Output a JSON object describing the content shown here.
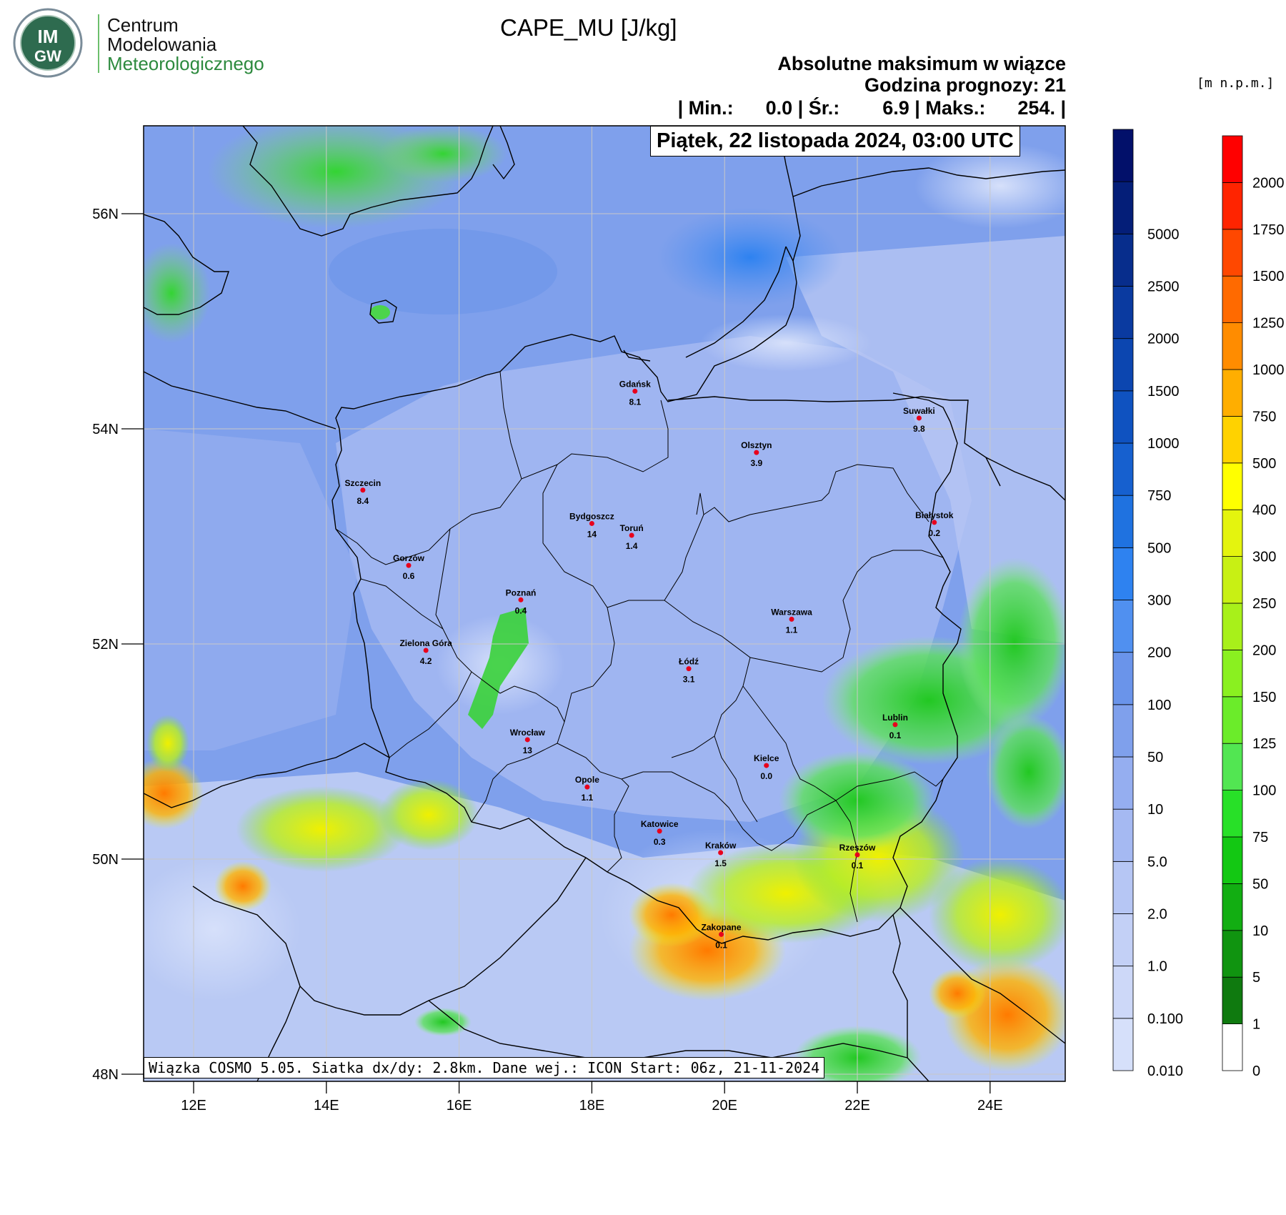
{
  "logo": {
    "badge_line1": "IM",
    "badge_line2": "GW",
    "org_line1": "Centrum",
    "org_line2": "Modelowania",
    "org_line3": "Meteorologicznego",
    "accent_dark": "#004a7c",
    "accent_green": "#4caf50"
  },
  "header": {
    "title": "CAPE_MU [J/kg]",
    "subtitle1": "Absolutne maksimum w wiązce",
    "subtitle2": "Godzina prognozy: 21",
    "stats": "| Min.:      0.0 | Śr.:        6.9 | Maks.:      254. |",
    "date": "Piątek, 22 listopada 2024, 03:00 UTC"
  },
  "footer_text": "Wiązka COSMO 5.05. Siatka dx/dy: 2.8km. Dane wej.: ICON Start: 06z, 21-11-2024",
  "axes": {
    "lat_labels": [
      "56N",
      "54N",
      "52N",
      "50N",
      "48N"
    ],
    "lon_labels": [
      "12E",
      "14E",
      "16E",
      "18E",
      "20E",
      "22E",
      "24E"
    ],
    "lat_values": [
      56,
      54,
      52,
      50,
      48
    ],
    "lon_values": [
      12,
      14,
      16,
      18,
      20,
      22,
      24
    ]
  },
  "legend_blue": {
    "labels": [
      "0.010",
      "0.100",
      "1.0",
      "2.0",
      "5.0",
      "10",
      "50",
      "100",
      "200",
      "300",
      "500",
      "750",
      "1000",
      "1500",
      "2000",
      "2500",
      "5000"
    ],
    "colors": [
      "#d6e0fa",
      "#cdd8f8",
      "#c3d0f6",
      "#b6c6f4",
      "#a5b9f2",
      "#95aef0",
      "#7fa0ec",
      "#6a94ea",
      "#5090f0",
      "#2e82f0",
      "#1f72e0",
      "#1660cf",
      "#0f52c0",
      "#0c46b0",
      "#0a3aa0",
      "#072d8c",
      "#041e78",
      "#02106a"
    ]
  },
  "legend_elev": {
    "unit": "[m n.p.m.]",
    "labels": [
      "0",
      "1",
      "5",
      "10",
      "50",
      "75",
      "100",
      "125",
      "150",
      "200",
      "250",
      "300",
      "400",
      "500",
      "750",
      "1000",
      "1250",
      "1500",
      "1750",
      "2000"
    ],
    "colors": [
      "#ffffff",
      "#0f7a0f",
      "#109410",
      "#12ae12",
      "#13c813",
      "#28e028",
      "#52e652",
      "#6bec2a",
      "#8af020",
      "#a8f01a",
      "#c8f014",
      "#e4f40e",
      "#ffff00",
      "#ffd200",
      "#ffae00",
      "#ff8c00",
      "#ff6a00",
      "#ff4800",
      "#ff2400",
      "#ff0000"
    ]
  },
  "cities": [
    {
      "name": "Gdańsk",
      "value": "8.1",
      "lat": 54.35,
      "lon": 18.65
    },
    {
      "name": "Suwałki",
      "value": "9.8",
      "lat": 54.1,
      "lon": 22.93
    },
    {
      "name": "Olsztyn",
      "value": "3.9",
      "lat": 53.78,
      "lon": 20.48
    },
    {
      "name": "Szczecin",
      "value": "8.4",
      "lat": 53.43,
      "lon": 14.55
    },
    {
      "name": "Białystok",
      "value": "0.2",
      "lat": 53.13,
      "lon": 23.16
    },
    {
      "name": "Bydgoszcz",
      "value": "14",
      "lat": 53.12,
      "lon": 18.0
    },
    {
      "name": "Toruń",
      "value": "1.4",
      "lat": 53.01,
      "lon": 18.6
    },
    {
      "name": "Gorzów",
      "value": "0.6",
      "lat": 52.73,
      "lon": 15.24
    },
    {
      "name": "Poznań",
      "value": "0.4",
      "lat": 52.41,
      "lon": 16.93
    },
    {
      "name": "Warszawa",
      "value": "1.1",
      "lat": 52.23,
      "lon": 21.01
    },
    {
      "name": "Zielona Góra",
      "value": "4.2",
      "lat": 51.94,
      "lon": 15.5
    },
    {
      "name": "Łódź",
      "value": "3.1",
      "lat": 51.77,
      "lon": 19.46
    },
    {
      "name": "Lublin",
      "value": "0.1",
      "lat": 51.25,
      "lon": 22.57
    },
    {
      "name": "Wrocław",
      "value": "13",
      "lat": 51.11,
      "lon": 17.03
    },
    {
      "name": "Kielce",
      "value": "0.0",
      "lat": 50.87,
      "lon": 20.63
    },
    {
      "name": "Opole",
      "value": "1.1",
      "lat": 50.67,
      "lon": 17.93
    },
    {
      "name": "Katowice",
      "value": "0.3",
      "lat": 50.26,
      "lon": 19.02
    },
    {
      "name": "Kraków",
      "value": "1.5",
      "lat": 50.06,
      "lon": 19.94
    },
    {
      "name": "Rzeszów",
      "value": "0.1",
      "lat": 50.04,
      "lon": 22.0
    },
    {
      "name": "Zakopane",
      "value": "0.1",
      "lat": 49.3,
      "lon": 19.95
    }
  ]
}
